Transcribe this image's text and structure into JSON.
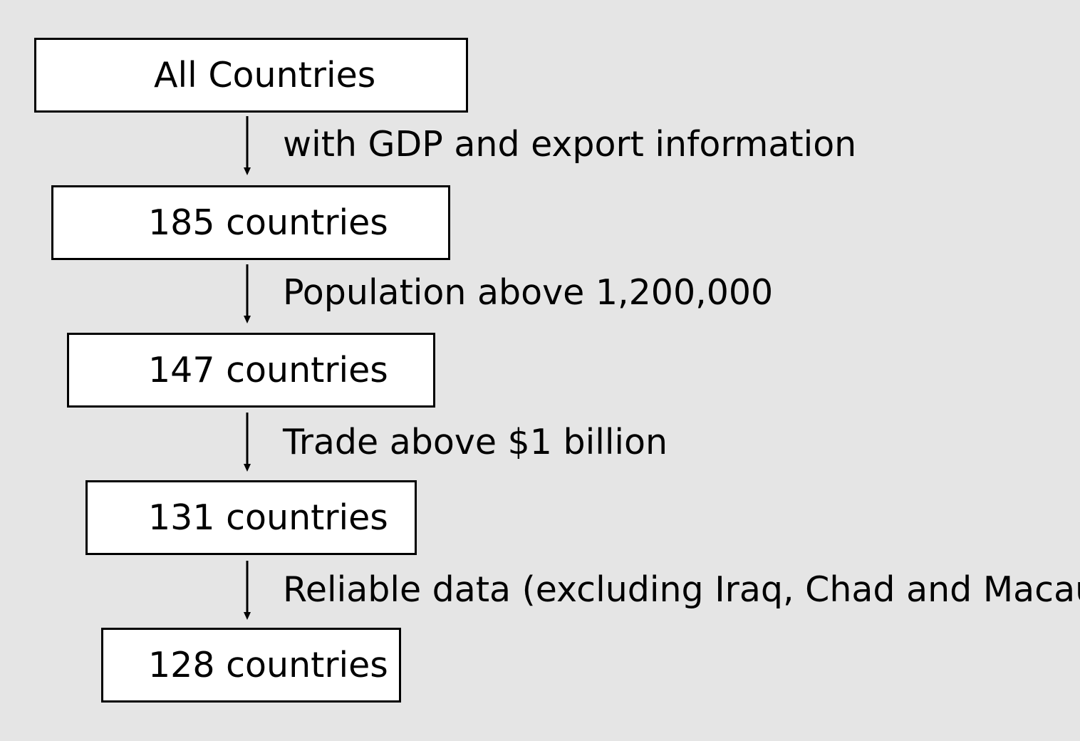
{
  "flowchart": {
    "boxes": [
      {
        "label": "All Countries"
      },
      {
        "label": "185 countries"
      },
      {
        "label": "147 countries"
      },
      {
        "label": "131 countries"
      },
      {
        "label": "128 countries"
      }
    ],
    "steps": [
      {
        "label": "with GDP and export information"
      },
      {
        "label": "Population above 1,200,000"
      },
      {
        "label": "Trade above $1 billion"
      },
      {
        "label": "Reliable data (excluding Iraq, Chad and Macau)"
      }
    ],
    "colors": {
      "background": "#e5e5e5",
      "box_fill": "#ffffff",
      "stroke": "#000000"
    }
  }
}
